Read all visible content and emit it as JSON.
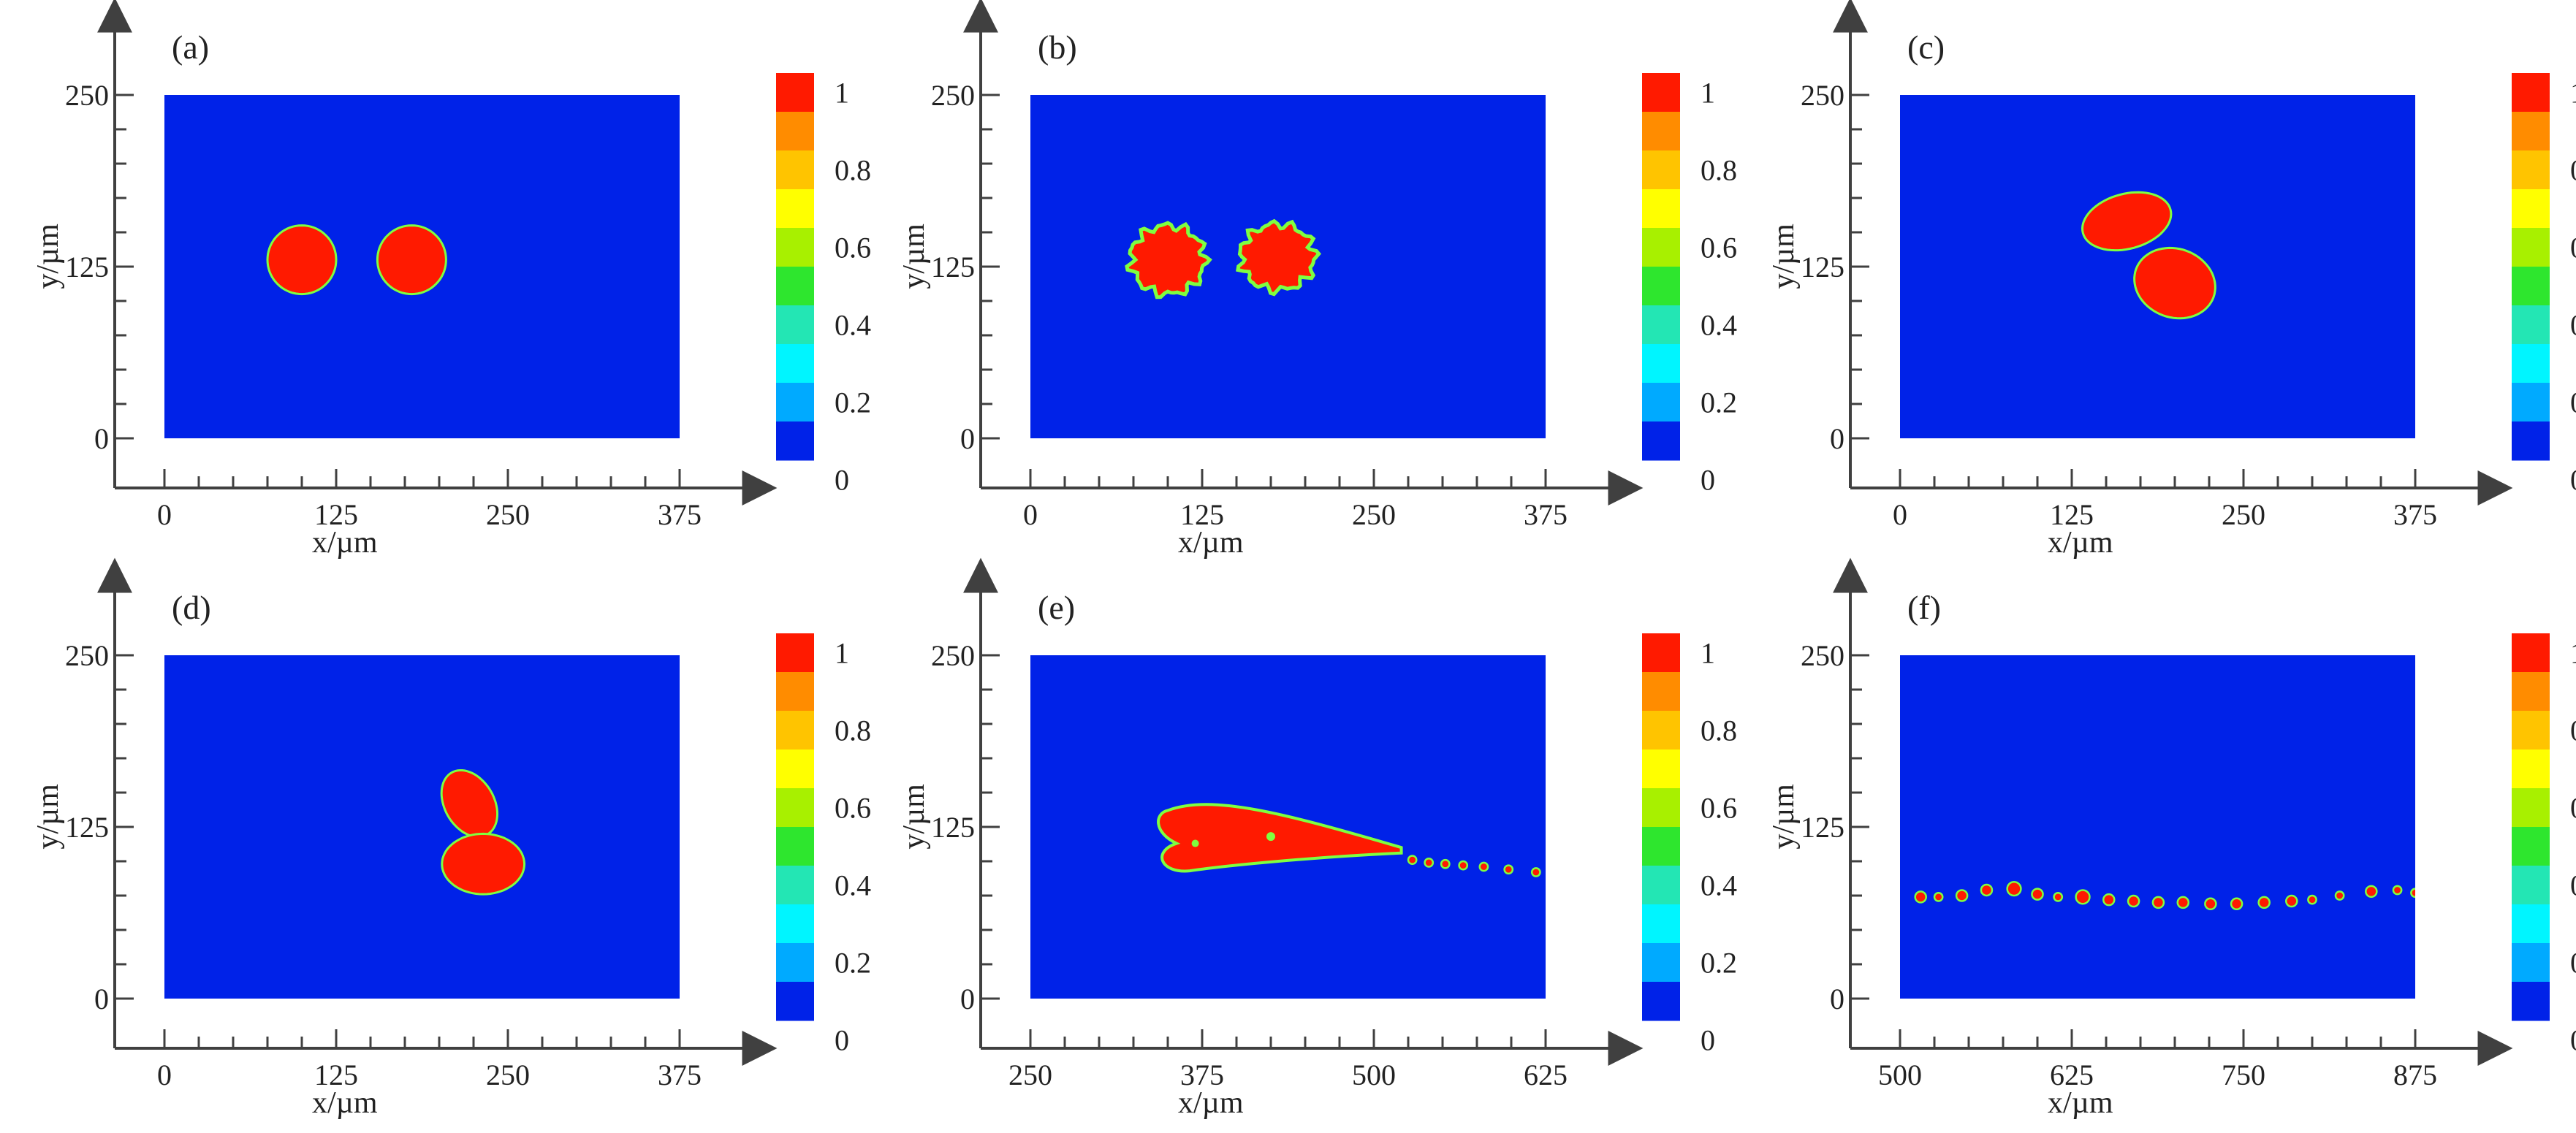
{
  "colors": {
    "field_blue": "#0022e8",
    "droplet_red": "#ff1a00",
    "interface_edge": "#7fff40",
    "axis": "#333333",
    "background": "#ffffff"
  },
  "colorbar": {
    "ticks": [
      "1",
      "0.8",
      "0.6",
      "0.4",
      "0.2",
      "0"
    ],
    "bands": [
      "#ff1a00",
      "#ff8c00",
      "#ffc400",
      "#ffff00",
      "#a8f000",
      "#2ee62e",
      "#23e6b4",
      "#00f5ff",
      "#00aaff",
      "#0022e8"
    ]
  },
  "chart_data": [
    {
      "type": "heatmap",
      "panel": "(a)",
      "xlabel": "x/µm",
      "ylabel": "y/µm",
      "xlim": [
        0,
        375
      ],
      "ylim": [
        0,
        250
      ],
      "xticks": [
        "0",
        "125",
        "250",
        "375"
      ],
      "yticks": [
        "0",
        "125",
        "250"
      ],
      "droplets": [
        {
          "cx": 100,
          "cy": 130,
          "rx": 25,
          "ry": 25,
          "irregular": false
        },
        {
          "cx": 180,
          "cy": 130,
          "rx": 25,
          "ry": 25,
          "irregular": false
        }
      ],
      "stream": []
    },
    {
      "type": "heatmap",
      "panel": "(b)",
      "xlabel": "x/µm",
      "ylabel": "y/µm",
      "xlim": [
        0,
        375
      ],
      "ylim": [
        0,
        250
      ],
      "xticks": [
        "0",
        "125",
        "250",
        "375"
      ],
      "yticks": [
        "0",
        "125",
        "250"
      ],
      "droplets": [
        {
          "cx": 100,
          "cy": 130,
          "rx": 27,
          "ry": 25,
          "irregular": true
        },
        {
          "cx": 180,
          "cy": 132,
          "rx": 27,
          "ry": 24,
          "irregular": true
        }
      ],
      "stream": []
    },
    {
      "type": "heatmap",
      "panel": "(c)",
      "xlabel": "x/µm",
      "ylabel": "y/µm",
      "xlim": [
        0,
        375
      ],
      "ylim": [
        0,
        250
      ],
      "xticks": [
        "0",
        "125",
        "250",
        "375"
      ],
      "yticks": [
        "0",
        "125",
        "250"
      ],
      "droplets": [
        {
          "cx": 165,
          "cy": 158,
          "rx": 33,
          "ry": 20,
          "irregular": false,
          "rotate": -15
        },
        {
          "cx": 200,
          "cy": 113,
          "rx": 30,
          "ry": 25,
          "irregular": false,
          "rotate": 20
        }
      ],
      "stream": []
    },
    {
      "type": "heatmap",
      "panel": "(d)",
      "xlabel": "x/µm",
      "ylabel": "y/µm",
      "xlim": [
        0,
        375
      ],
      "ylim": [
        0,
        250
      ],
      "xticks": [
        "0",
        "125",
        "250",
        "375"
      ],
      "yticks": [
        "0",
        "125",
        "250"
      ],
      "droplets": [
        {
          "cx": 222,
          "cy": 142,
          "rx": 18,
          "ry": 26,
          "irregular": false,
          "rotate": -30
        },
        {
          "cx": 232,
          "cy": 98,
          "rx": 30,
          "ry": 22,
          "irregular": false,
          "rotate": 0
        }
      ],
      "stream": []
    },
    {
      "type": "heatmap",
      "panel": "(e)",
      "xlabel": "x/µm",
      "ylabel": "y/µm",
      "xlim": [
        250,
        625
      ],
      "ylim": [
        0,
        250
      ],
      "xticks": [
        "250",
        "375",
        "500",
        "625"
      ],
      "yticks": [
        "0",
        "125",
        "250"
      ],
      "jet": {
        "head_x": 350,
        "tail_x": 520,
        "y": 115
      },
      "stream": [
        {
          "x": 528,
          "y": 101,
          "r": 3
        },
        {
          "x": 540,
          "y": 99,
          "r": 3
        },
        {
          "x": 552,
          "y": 98,
          "r": 3
        },
        {
          "x": 565,
          "y": 97,
          "r": 3
        },
        {
          "x": 580,
          "y": 96,
          "r": 3
        },
        {
          "x": 598,
          "y": 94,
          "r": 3
        },
        {
          "x": 618,
          "y": 92,
          "r": 3
        }
      ]
    },
    {
      "type": "heatmap",
      "panel": "(f)",
      "xlabel": "x/µm",
      "ylabel": "y/µm",
      "xlim": [
        500,
        875
      ],
      "ylim": [
        0,
        250
      ],
      "xticks": [
        "500",
        "625",
        "750",
        "875"
      ],
      "yticks": [
        "0",
        "125",
        "250"
      ],
      "droplets": [],
      "stream": [
        {
          "x": 515,
          "y": 74,
          "r": 4
        },
        {
          "x": 528,
          "y": 74,
          "r": 3
        },
        {
          "x": 545,
          "y": 75,
          "r": 4
        },
        {
          "x": 563,
          "y": 79,
          "r": 4
        },
        {
          "x": 583,
          "y": 80,
          "r": 5
        },
        {
          "x": 600,
          "y": 76,
          "r": 4
        },
        {
          "x": 615,
          "y": 74,
          "r": 3
        },
        {
          "x": 633,
          "y": 74,
          "r": 5
        },
        {
          "x": 652,
          "y": 72,
          "r": 4
        },
        {
          "x": 670,
          "y": 71,
          "r": 4
        },
        {
          "x": 688,
          "y": 70,
          "r": 4
        },
        {
          "x": 706,
          "y": 70,
          "r": 4
        },
        {
          "x": 726,
          "y": 69,
          "r": 4
        },
        {
          "x": 745,
          "y": 69,
          "r": 4
        },
        {
          "x": 765,
          "y": 70,
          "r": 4
        },
        {
          "x": 785,
          "y": 71,
          "r": 4
        },
        {
          "x": 800,
          "y": 72,
          "r": 3
        },
        {
          "x": 820,
          "y": 75,
          "r": 3
        },
        {
          "x": 843,
          "y": 78,
          "r": 4
        },
        {
          "x": 862,
          "y": 79,
          "r": 3
        },
        {
          "x": 875,
          "y": 77,
          "r": 3
        }
      ]
    }
  ]
}
